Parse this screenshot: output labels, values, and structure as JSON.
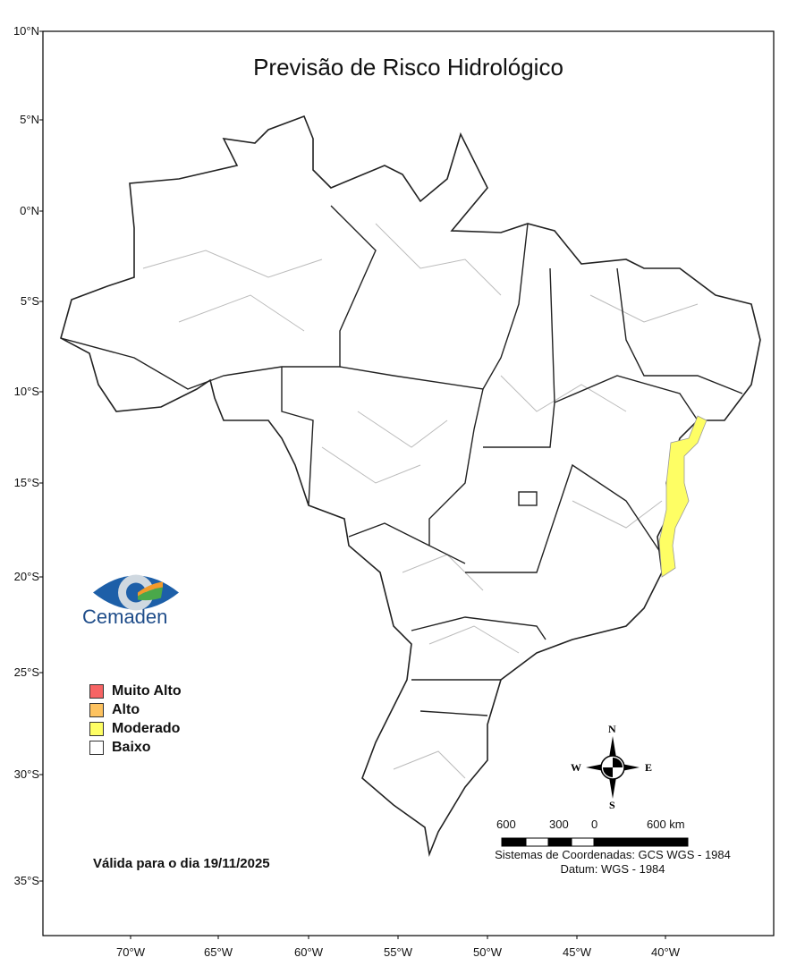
{
  "title": "Previsão de Risco Hidrológico",
  "latitude_ticks": [
    "10°N",
    "5°N",
    "0°N",
    "5°S",
    "10°S",
    "15°S",
    "20°S",
    "25°S",
    "30°S",
    "35°S"
  ],
  "longitude_ticks": [
    "70°W",
    "65°W",
    "60°W",
    "55°W",
    "50°W",
    "45°W",
    "40°W"
  ],
  "logo": {
    "text": "Cemaden"
  },
  "legend": [
    {
      "label": "Muito Alto",
      "color": "#f76464"
    },
    {
      "label": "Alto",
      "color": "#fdc25f"
    },
    {
      "label": "Moderado",
      "color": "#fefe64"
    },
    {
      "label": "Baixo",
      "color": "#ffffff"
    }
  ],
  "highlighted_region": {
    "level": "Moderado",
    "area": "southern Bahia / northern Espírito Santo coast"
  },
  "valid_date": "Válida para o dia 19/11/2025",
  "compass": {
    "n": "N",
    "s": "S",
    "e": "E",
    "w": "W"
  },
  "scale_bar": {
    "labels": [
      "600",
      "300",
      "0",
      "600 km"
    ]
  },
  "coordinate_system": "Sistemas de Coordenadas: GCS WGS - 1984",
  "datum": "Datum: WGS - 1984"
}
